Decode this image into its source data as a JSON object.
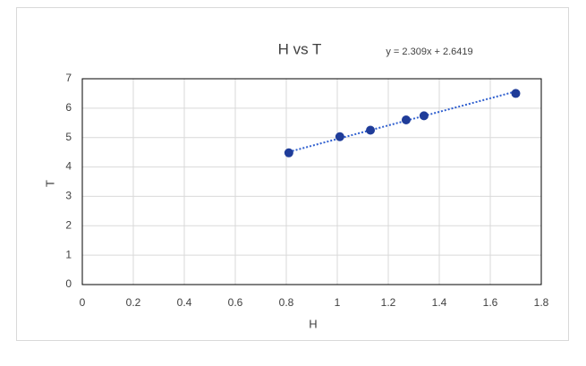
{
  "chart_data": {
    "type": "scatter",
    "title": "H vs T",
    "x_label": "H",
    "y_label": "T",
    "series": [
      {
        "name": "T",
        "color": "#1f3c99",
        "x": [
          0.81,
          1.01,
          1.13,
          1.27,
          1.34,
          1.7
        ],
        "values": [
          4.48,
          5.03,
          5.25,
          5.6,
          5.74,
          6.5
        ]
      }
    ],
    "trendline": {
      "label": "y = 2.309x + 2.6419",
      "slope": 2.309,
      "intercept": 2.6419,
      "color": "#2f5fcf"
    },
    "xlim": [
      0,
      1.8
    ],
    "xticks": [
      0,
      0.2,
      0.4,
      0.6,
      0.8,
      1,
      1.2,
      1.4,
      1.6,
      1.8
    ],
    "ylim": [
      0,
      7
    ],
    "yticks": [
      0,
      1,
      2,
      3,
      4,
      5,
      6,
      7
    ],
    "grid": true
  }
}
